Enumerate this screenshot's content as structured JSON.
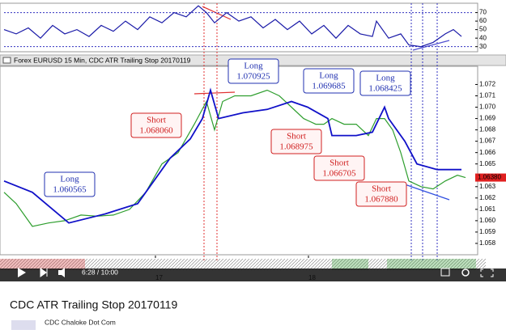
{
  "chart_data": [
    {
      "type": "line",
      "xlim": [
        0,
        580
      ],
      "ylim": [
        24,
        81
      ],
      "yticks": [
        70,
        60,
        50,
        40,
        30
      ],
      "series": [
        {
          "color": "#1a1aa8",
          "x": [
            0,
            15,
            30,
            45,
            60,
            75,
            90,
            105,
            120,
            135,
            150,
            165,
            180,
            195,
            210,
            225,
            240,
            250,
            260,
            275,
            290,
            305,
            320,
            335,
            350,
            365,
            380,
            395,
            410,
            425,
            440,
            455,
            460,
            475,
            490,
            500,
            515,
            530,
            545,
            555,
            565
          ],
          "values": [
            50,
            45,
            52,
            40,
            55,
            45,
            50,
            42,
            55,
            48,
            60,
            50,
            65,
            58,
            70,
            65,
            78,
            70,
            58,
            70,
            60,
            65,
            52,
            62,
            50,
            60,
            45,
            55,
            40,
            55,
            45,
            42,
            60,
            40,
            45,
            32,
            30,
            35,
            45,
            50,
            42
          ]
        }
      ]
    },
    {
      "type": "line",
      "title": "Forex EURUSD 15 Min, CDC ATR Trailing Stop 20170119",
      "xlim": [
        0,
        580
      ],
      "xticks": [
        {
          "value": 187,
          "label": "17"
        },
        {
          "value": 376,
          "label": "18"
        }
      ],
      "ylim": [
        1.057,
        1.0736
      ],
      "yticks": [
        1.072,
        1.071,
        {
          "value": 1.07,
          "label": "1.070"
        },
        1.069,
        1.068,
        1.067,
        1.066,
        1.065,
        1.063,
        1.062,
        1.061,
        {
          "value": 1.06,
          "label": "1.060"
        },
        1.059,
        1.058
      ],
      "last_price": {
        "value": 1.0638,
        "label": "1.06380"
      },
      "series": [
        {
          "color": "#2e9e2e",
          "x": [
            0,
            15,
            35,
            55,
            75,
            95,
            115,
            135,
            155,
            175,
            195,
            215,
            235,
            250,
            260,
            270,
            285,
            305,
            325,
            340,
            355,
            370,
            385,
            395,
            405,
            420,
            435,
            450,
            460,
            470,
            480,
            490,
            500,
            515,
            530,
            545,
            560,
            570
          ],
          "values": [
            1.0625,
            1.0615,
            1.0595,
            1.0598,
            1.06,
            1.0605,
            1.0604,
            1.0605,
            1.061,
            1.0625,
            1.065,
            1.066,
            1.0685,
            1.0705,
            1.068,
            1.0705,
            1.071,
            1.071,
            1.0715,
            1.071,
            1.07,
            1.069,
            1.0685,
            1.0685,
            1.069,
            1.0685,
            1.0685,
            1.0675,
            1.069,
            1.069,
            1.068,
            1.066,
            1.0635,
            1.063,
            1.0628,
            1.0635,
            1.064,
            1.0638
          ]
        },
        {
          "color": "#1010c8",
          "x": [
            0,
            35,
            80,
            125,
            165,
            185,
            205,
            230,
            245,
            255,
            265,
            295,
            325,
            355,
            375,
            400,
            405,
            435,
            455,
            470,
            475,
            495,
            510,
            535,
            565
          ],
          "values": [
            1.0635,
            1.0625,
            1.0598,
            1.0606,
            1.0615,
            1.0635,
            1.0655,
            1.0672,
            1.069,
            1.0715,
            1.069,
            1.0695,
            1.0698,
            1.0705,
            1.07,
            1.069,
            1.0675,
            1.0675,
            1.0678,
            1.07,
            1.069,
            1.067,
            1.065,
            1.0645,
            1.0645
          ]
        }
      ]
    }
  ],
  "annotations": [
    {
      "side": "Long",
      "price": "1.070925"
    },
    {
      "side": "Short",
      "price": "1.068060"
    },
    {
      "side": "Long",
      "price": "1.069685"
    },
    {
      "side": "Long",
      "price": "1.068425"
    },
    {
      "side": "Short",
      "price": "1.068975"
    },
    {
      "side": "Short",
      "price": "1.066705"
    },
    {
      "side": "Long",
      "price": "1.060565"
    },
    {
      "side": "Short",
      "price": "1.067880"
    }
  ],
  "player": {
    "time": "6:28 / 10:00"
  },
  "video": {
    "title": "CDC ATR Trailing Stop 20170119",
    "channel": "CDC Chaloke Dot Com"
  }
}
